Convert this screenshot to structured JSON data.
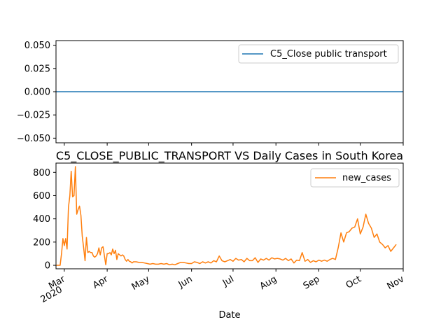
{
  "chart_data": [
    {
      "type": "line",
      "title": "",
      "xlabel": "",
      "ylabel": "",
      "ylim": [
        -0.055,
        0.055
      ],
      "yticks": [
        0.05,
        0.025,
        0.0,
        -0.025,
        -0.05
      ],
      "ytick_labels": [
        "0.050",
        "0.025",
        "0.000",
        "−0.025",
        "−0.050"
      ],
      "x": [
        "2020-02-24",
        "2020-11-01"
      ],
      "series": [
        {
          "name": "C5_Close public transport",
          "color": "#1f77b4",
          "values": [
            0,
            0
          ]
        }
      ],
      "legend": "top-right",
      "grid": false
    },
    {
      "type": "line",
      "title": "C5_CLOSE_PUBLIC_TRANSPORT VS Daily Cases in South Korea",
      "xlabel": "Date",
      "ylabel": "",
      "ylim": [
        -30,
        880
      ],
      "xlim": [
        "2020-02-24",
        "2020-11-01"
      ],
      "yticks": [
        0,
        200,
        400,
        600,
        800
      ],
      "xtick_labels": [
        {
          "date": "2020-03-01",
          "label": "Mar",
          "sub": "2020"
        },
        {
          "date": "2020-04-01",
          "label": "Apr",
          "sub": ""
        },
        {
          "date": "2020-05-01",
          "label": "May",
          "sub": ""
        },
        {
          "date": "2020-06-01",
          "label": "Jun",
          "sub": ""
        },
        {
          "date": "2020-07-01",
          "label": "Jul",
          "sub": ""
        },
        {
          "date": "2020-08-01",
          "label": "Aug",
          "sub": ""
        },
        {
          "date": "2020-09-01",
          "label": "Sep",
          "sub": ""
        },
        {
          "date": "2020-10-01",
          "label": "Oct",
          "sub": ""
        },
        {
          "date": "2020-11-01",
          "label": "Nov",
          "sub": ""
        }
      ],
      "series": [
        {
          "name": "new_cases",
          "color": "#ff7f0e",
          "points": [
            [
              "2020-02-24",
              0
            ],
            [
              "2020-02-25",
              0
            ],
            [
              "2020-02-26",
              0
            ],
            [
              "2020-02-27",
              0
            ],
            [
              "2020-02-28",
              100
            ],
            [
              "2020-02-29",
              230
            ],
            [
              "2020-03-01",
              170
            ],
            [
              "2020-03-02",
              230
            ],
            [
              "2020-03-03",
              140
            ],
            [
              "2020-03-04",
              500
            ],
            [
              "2020-03-05",
              600
            ],
            [
              "2020-03-06",
              810
            ],
            [
              "2020-03-07",
              590
            ],
            [
              "2020-03-08",
              600
            ],
            [
              "2020-03-09",
              850
            ],
            [
              "2020-03-10",
              440
            ],
            [
              "2020-03-11",
              480
            ],
            [
              "2020-03-12",
              510
            ],
            [
              "2020-03-13",
              430
            ],
            [
              "2020-03-14",
              250
            ],
            [
              "2020-03-15",
              150
            ],
            [
              "2020-03-16",
              40
            ],
            [
              "2020-03-17",
              240
            ],
            [
              "2020-03-18",
              110
            ],
            [
              "2020-03-19",
              120
            ],
            [
              "2020-03-20",
              110
            ],
            [
              "2020-03-21",
              110
            ],
            [
              "2020-03-22",
              80
            ],
            [
              "2020-03-23",
              70
            ],
            [
              "2020-03-24",
              80
            ],
            [
              "2020-03-25",
              100
            ],
            [
              "2020-03-26",
              150
            ],
            [
              "2020-03-27",
              90
            ],
            [
              "2020-03-28",
              150
            ],
            [
              "2020-03-29",
              160
            ],
            [
              "2020-03-30",
              80
            ],
            [
              "2020-03-31",
              5
            ],
            [
              "2020-04-01",
              100
            ],
            [
              "2020-04-02",
              100
            ],
            [
              "2020-04-03",
              110
            ],
            [
              "2020-04-04",
              90
            ],
            [
              "2020-04-05",
              140
            ],
            [
              "2020-04-06",
              100
            ],
            [
              "2020-04-07",
              130
            ],
            [
              "2020-04-08",
              50
            ],
            [
              "2020-04-09",
              100
            ],
            [
              "2020-04-10",
              90
            ],
            [
              "2020-04-11",
              80
            ],
            [
              "2020-04-12",
              90
            ],
            [
              "2020-04-13",
              80
            ],
            [
              "2020-04-14",
              50
            ],
            [
              "2020-04-15",
              35
            ],
            [
              "2020-04-16",
              50
            ],
            [
              "2020-04-17",
              35
            ],
            [
              "2020-04-18",
              30
            ],
            [
              "2020-04-19",
              20
            ],
            [
              "2020-04-20",
              30
            ],
            [
              "2020-04-22",
              30
            ],
            [
              "2020-04-24",
              25
            ],
            [
              "2020-04-26",
              25
            ],
            [
              "2020-04-28",
              20
            ],
            [
              "2020-04-30",
              15
            ],
            [
              "2020-05-02",
              10
            ],
            [
              "2020-05-04",
              15
            ],
            [
              "2020-05-06",
              10
            ],
            [
              "2020-05-08",
              10
            ],
            [
              "2020-05-10",
              15
            ],
            [
              "2020-05-12",
              10
            ],
            [
              "2020-05-14",
              15
            ],
            [
              "2020-05-16",
              5
            ],
            [
              "2020-05-18",
              10
            ],
            [
              "2020-05-20",
              5
            ],
            [
              "2020-05-22",
              15
            ],
            [
              "2020-05-24",
              25
            ],
            [
              "2020-05-26",
              25
            ],
            [
              "2020-05-28",
              20
            ],
            [
              "2020-05-30",
              15
            ],
            [
              "2020-06-01",
              15
            ],
            [
              "2020-06-03",
              30
            ],
            [
              "2020-06-05",
              25
            ],
            [
              "2020-06-07",
              15
            ],
            [
              "2020-06-09",
              30
            ],
            [
              "2020-06-11",
              20
            ],
            [
              "2020-06-13",
              30
            ],
            [
              "2020-06-15",
              20
            ],
            [
              "2020-06-17",
              40
            ],
            [
              "2020-06-19",
              30
            ],
            [
              "2020-06-21",
              80
            ],
            [
              "2020-06-23",
              40
            ],
            [
              "2020-06-25",
              30
            ],
            [
              "2020-06-27",
              40
            ],
            [
              "2020-06-29",
              50
            ],
            [
              "2020-07-01",
              35
            ],
            [
              "2020-07-03",
              60
            ],
            [
              "2020-07-05",
              45
            ],
            [
              "2020-07-07",
              50
            ],
            [
              "2020-07-09",
              30
            ],
            [
              "2020-07-11",
              60
            ],
            [
              "2020-07-13",
              40
            ],
            [
              "2020-07-15",
              40
            ],
            [
              "2020-07-17",
              65
            ],
            [
              "2020-07-19",
              25
            ],
            [
              "2020-07-21",
              55
            ],
            [
              "2020-07-23",
              45
            ],
            [
              "2020-07-25",
              60
            ],
            [
              "2020-07-27",
              45
            ],
            [
              "2020-07-29",
              65
            ],
            [
              "2020-07-31",
              55
            ],
            [
              "2020-08-02",
              60
            ],
            [
              "2020-08-04",
              55
            ],
            [
              "2020-08-06",
              45
            ],
            [
              "2020-08-08",
              60
            ],
            [
              "2020-08-10",
              40
            ],
            [
              "2020-08-12",
              55
            ],
            [
              "2020-08-14",
              20
            ],
            [
              "2020-08-16",
              45
            ],
            [
              "2020-08-18",
              40
            ],
            [
              "2020-08-20",
              110
            ],
            [
              "2020-08-22",
              35
            ],
            [
              "2020-08-24",
              50
            ],
            [
              "2020-08-26",
              25
            ],
            [
              "2020-08-28",
              40
            ],
            [
              "2020-08-30",
              30
            ],
            [
              "2020-09-01",
              45
            ],
            [
              "2020-09-03",
              35
            ],
            [
              "2020-09-05",
              45
            ],
            [
              "2020-09-07",
              35
            ],
            [
              "2020-09-09",
              50
            ],
            [
              "2020-09-11",
              60
            ],
            [
              "2020-09-13",
              50
            ],
            [
              "2020-09-15",
              150
            ],
            [
              "2020-09-17",
              280
            ],
            [
              "2020-09-19",
              200
            ],
            [
              "2020-09-21",
              280
            ],
            [
              "2020-09-23",
              290
            ],
            [
              "2020-09-25",
              320
            ],
            [
              "2020-09-27",
              330
            ],
            [
              "2020-09-29",
              400
            ],
            [
              "2020-10-01",
              270
            ],
            [
              "2020-10-03",
              330
            ],
            [
              "2020-10-05",
              440
            ],
            [
              "2020-10-07",
              360
            ],
            [
              "2020-10-09",
              320
            ],
            [
              "2020-10-11",
              240
            ],
            [
              "2020-10-13",
              270
            ],
            [
              "2020-10-15",
              200
            ],
            [
              "2020-10-17",
              180
            ],
            [
              "2020-10-19",
              150
            ],
            [
              "2020-10-21",
              170
            ],
            [
              "2020-10-23",
              120
            ],
            [
              "2020-10-25",
              150
            ],
            [
              "2020-10-27",
              180
            ]
          ]
        }
      ],
      "legend": "top-right",
      "grid": false
    }
  ]
}
